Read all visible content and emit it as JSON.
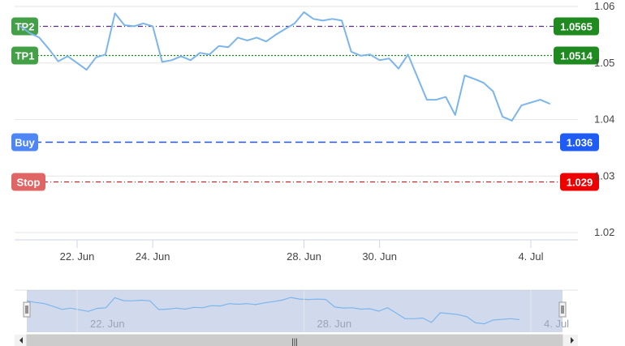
{
  "chart_data": {
    "type": "line",
    "x": [
      "Jun 20 12:00",
      "Jun 20 18:00",
      "Jun 21 00:00",
      "Jun 21 06:00",
      "Jun 21 12:00",
      "Jun 21 18:00",
      "Jun 22 00:00",
      "Jun 22 06:00",
      "Jun 22 12:00",
      "Jun 22 18:00",
      "Jun 23 00:00",
      "Jun 23 06:00",
      "Jun 23 12:00",
      "Jun 23 18:00",
      "Jun 24 00:00",
      "Jun 24 06:00",
      "Jun 24 12:00",
      "Jun 24 18:00",
      "Jun 25 00:00",
      "Jun 25 06:00",
      "Jun 25 12:00",
      "Jun 25 18:00",
      "Jun 26 00:00",
      "Jun 26 06:00",
      "Jun 26 12:00",
      "Jun 26 18:00",
      "Jun 27 00:00",
      "Jun 27 06:00",
      "Jun 27 12:00",
      "Jun 27 18:00",
      "Jun 28 00:00",
      "Jun 28 06:00",
      "Jun 28 12:00",
      "Jun 28 18:00",
      "Jun 29 00:00",
      "Jun 29 06:00",
      "Jun 29 12:00",
      "Jun 29 18:00",
      "Jun 30 00:00",
      "Jun 30 06:00",
      "Jun 30 12:00",
      "Jun 30 18:00",
      "Jul 01 00:00",
      "Jul 01 06:00",
      "Jul 01 12:00",
      "Jul 01 18:00",
      "Jul 02 00:00",
      "Jul 02 06:00",
      "Jul 02 12:00",
      "Jul 02 18:00",
      "Jul 03 00:00",
      "Jul 03 06:00",
      "Jul 03 12:00",
      "Jul 03 18:00",
      "Jul 04 00:00",
      "Jul 04 06:00",
      "Jul 04 12:00"
    ],
    "series": [
      {
        "values": [
          1.0565,
          1.0553,
          1.0545,
          1.0525,
          1.0503,
          1.0512,
          1.05,
          1.0488,
          1.051,
          1.0515,
          1.0588,
          1.0567,
          1.0565,
          1.057,
          1.0565,
          1.0502,
          1.0505,
          1.0512,
          1.0505,
          1.0518,
          1.0515,
          1.053,
          1.0528,
          1.0545,
          1.054,
          1.0545,
          1.0538,
          1.055,
          1.056,
          1.057,
          1.059,
          1.0578,
          1.0575,
          1.0578,
          1.0575,
          1.052,
          1.0513,
          1.0515,
          1.0505,
          1.0508,
          1.049,
          1.0515,
          1.0475,
          1.0435,
          1.0435,
          1.044,
          1.0408,
          1.0478,
          1.0472,
          1.0465,
          1.045,
          1.0405,
          1.0398,
          1.0425,
          1.043,
          1.0435,
          1.0428
        ]
      }
    ],
    "y_axis": {
      "ticks": [
        "1.02",
        "1.03",
        "1.04",
        "1.05",
        "1.06"
      ],
      "ylim": [
        1.018,
        1.062
      ],
      "position": "right"
    },
    "x_axis": {
      "ticks": [
        {
          "x": "Jun 22 00:00",
          "label": "22. Jun"
        },
        {
          "x": "Jun 24 00:00",
          "label": "24. Jun"
        },
        {
          "x": "Jun 28 00:00",
          "label": "28. Jun"
        },
        {
          "x": "Jun 30 00:00",
          "label": "30. Jun"
        },
        {
          "x": "Jul 04 00:00",
          "label": "4. Jul"
        }
      ]
    },
    "levels": [
      {
        "label": "TP2",
        "value": 1.0565,
        "value_label": "1.0565",
        "color": "#5a2a82",
        "badge_color": "#1f8a1f",
        "label_color": "#43a047",
        "style": "dash-dot"
      },
      {
        "label": "TP1",
        "value": 1.0514,
        "value_label": "1.0514",
        "color": "#1f8a1f",
        "badge_color": "#1f8a1f",
        "label_color": "#43a047",
        "style": "dotted"
      },
      {
        "label": "Buy",
        "value": 1.036,
        "value_label": "1.036",
        "color": "#2255ee",
        "badge_color": "#1f5cf5",
        "label_color": "#4f86f7",
        "style": "dashed"
      },
      {
        "label": "Stop",
        "value": 1.029,
        "value_label": "1.029",
        "color": "#c62828",
        "badge_color": "#ee0000",
        "label_color": "#e06666",
        "style": "dash-dot"
      }
    ],
    "line_color": "#7cb5ec",
    "grid": true
  },
  "navigator": {
    "labels": [
      {
        "x": "Jun 22 00:00",
        "label": "22. Jun"
      },
      {
        "x": "Jun 28 00:00",
        "label": "28. Jun"
      },
      {
        "x": "Jul 04 00:00",
        "label": "4. Jul"
      }
    ],
    "scrollbar_grip": "|||"
  }
}
